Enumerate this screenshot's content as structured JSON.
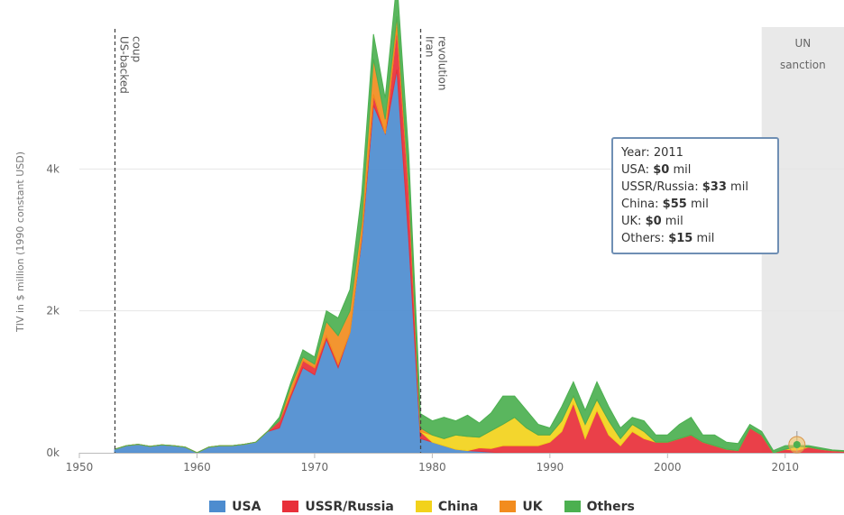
{
  "chart_data": {
    "type": "area",
    "stacked": true,
    "title": "",
    "xlabel": "",
    "ylabel": "TIV in $ million (1990 constant USD)",
    "xlim": [
      1950,
      2015
    ],
    "ylim": [
      0,
      6000
    ],
    "x_ticks": [
      "1950",
      "1960",
      "1970",
      "1980",
      "1990",
      "2000",
      "2010"
    ],
    "y_ticks": [
      "0k",
      "2k",
      "4k"
    ],
    "y_tick_values": [
      0,
      2000,
      4000
    ],
    "grid": "horizontal",
    "legend_position": "bottom",
    "x": [
      1953,
      1954,
      1955,
      1956,
      1957,
      1958,
      1959,
      1960,
      1961,
      1962,
      1963,
      1964,
      1965,
      1966,
      1967,
      1968,
      1969,
      1970,
      1971,
      1972,
      1973,
      1974,
      1975,
      1976,
      1977,
      1978,
      1979,
      1980,
      1981,
      1982,
      1983,
      1984,
      1985,
      1986,
      1987,
      1988,
      1989,
      1990,
      1991,
      1992,
      1993,
      1994,
      1995,
      1996,
      1997,
      1998,
      1999,
      2000,
      2001,
      2002,
      2003,
      2004,
      2005,
      2006,
      2007,
      2008,
      2009,
      2010,
      2011,
      2012,
      2013,
      2014,
      2015
    ],
    "series": [
      {
        "name": "USA",
        "color": "#4d8ccf",
        "values": [
          50,
          100,
          120,
          90,
          110,
          100,
          80,
          0,
          80,
          100,
          100,
          120,
          150,
          300,
          350,
          800,
          1200,
          1100,
          1600,
          1200,
          1700,
          3000,
          4900,
          4500,
          5400,
          3000,
          200,
          150,
          100,
          50,
          30,
          20,
          10,
          0,
          0,
          0,
          0,
          0,
          0,
          0,
          0,
          0,
          0,
          0,
          0,
          0,
          0,
          0,
          0,
          0,
          0,
          0,
          0,
          0,
          0,
          0,
          0,
          0,
          0,
          0,
          0,
          0,
          0
        ]
      },
      {
        "name": "USSR/Russia",
        "color": "#e8303a",
        "values": [
          0,
          0,
          0,
          0,
          0,
          0,
          0,
          0,
          0,
          0,
          0,
          0,
          0,
          0,
          100,
          50,
          100,
          100,
          50,
          50,
          0,
          50,
          150,
          0,
          600,
          700,
          100,
          0,
          0,
          0,
          0,
          50,
          50,
          100,
          100,
          100,
          100,
          150,
          300,
          700,
          200,
          600,
          250,
          100,
          300,
          200,
          150,
          150,
          200,
          250,
          150,
          100,
          50,
          30,
          350,
          250,
          0,
          50,
          33,
          80,
          50,
          30,
          20
        ]
      },
      {
        "name": "China",
        "color": "#f2d21b",
        "values": [
          0,
          0,
          0,
          0,
          0,
          0,
          0,
          0,
          0,
          0,
          0,
          0,
          0,
          0,
          0,
          0,
          0,
          0,
          0,
          0,
          0,
          0,
          0,
          0,
          0,
          0,
          0,
          100,
          100,
          200,
          200,
          150,
          250,
          300,
          400,
          250,
          150,
          100,
          150,
          100,
          200,
          150,
          200,
          100,
          100,
          100,
          0,
          0,
          0,
          0,
          0,
          0,
          0,
          0,
          0,
          0,
          0,
          0,
          55,
          0,
          0,
          0,
          0
        ]
      },
      {
        "name": "UK",
        "color": "#f28c1e",
        "values": [
          0,
          0,
          0,
          0,
          0,
          0,
          0,
          0,
          0,
          0,
          0,
          0,
          0,
          0,
          0,
          100,
          50,
          50,
          200,
          400,
          300,
          200,
          500,
          200,
          150,
          100,
          50,
          0,
          0,
          0,
          0,
          0,
          0,
          0,
          0,
          0,
          0,
          0,
          0,
          0,
          0,
          0,
          0,
          0,
          0,
          0,
          0,
          0,
          0,
          0,
          0,
          0,
          0,
          0,
          0,
          0,
          0,
          0,
          0,
          0,
          0,
          0,
          0
        ]
      },
      {
        "name": "Others",
        "color": "#4cb050",
        "values": [
          0,
          0,
          0,
          0,
          0,
          0,
          0,
          0,
          0,
          0,
          0,
          0,
          0,
          0,
          50,
          50,
          100,
          100,
          150,
          250,
          300,
          400,
          350,
          300,
          500,
          400,
          200,
          200,
          300,
          200,
          300,
          200,
          250,
          400,
          300,
          250,
          150,
          100,
          200,
          200,
          200,
          250,
          200,
          150,
          100,
          150,
          100,
          100,
          200,
          250,
          100,
          150,
          100,
          100,
          50,
          50,
          30,
          50,
          15,
          20,
          20,
          10,
          10
        ]
      }
    ],
    "annotations": [
      {
        "x": 1953,
        "text": "US-backed",
        "text2": "coup"
      },
      {
        "x": 1979,
        "text": "Iran",
        "text2": "revolution"
      }
    ],
    "band": {
      "from": 2008,
      "to": 2015,
      "label_line1": "UN",
      "label_line2": "sanction"
    },
    "tooltip": {
      "year_label": "Year:",
      "year_value": "2011",
      "rows": [
        {
          "label": "USA:",
          "value": "$0",
          "unit": "mil"
        },
        {
          "label": "USSR/Russia:",
          "value": "$33",
          "unit": "mil"
        },
        {
          "label": "China:",
          "value": "$55",
          "unit": "mil"
        },
        {
          "label": "UK:",
          "value": "$0",
          "unit": "mil"
        },
        {
          "label": "Others:",
          "value": "$15",
          "unit": "mil"
        }
      ]
    }
  }
}
